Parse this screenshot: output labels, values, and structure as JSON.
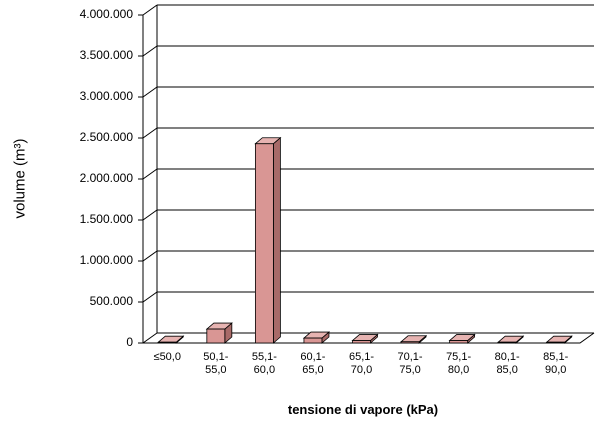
{
  "chart_data": {
    "type": "bar3d",
    "x_label": "tensione di vapore (kPa)",
    "y_label": "volume (m³)",
    "categories": [
      "≤50,0",
      "50,1-55,0",
      "55,1-60,0",
      "60,1-65,0",
      "65,1-70,0",
      "70,1-75,0",
      "75,1-80,0",
      "80,1-85,0",
      "85,1-90,0"
    ],
    "values": [
      10000,
      170000,
      2430000,
      60000,
      30000,
      15000,
      30000,
      10000,
      10000
    ],
    "color": "#d99694",
    "ylim": [
      0,
      4000000
    ],
    "yticks": [
      0,
      {
        "value": 500000,
        "label": "500.000"
      },
      {
        "value": 1000000,
        "label": "1.000.000"
      },
      {
        "value": 1500000,
        "label": "1.500.000"
      },
      {
        "value": 2000000,
        "label": "2.000.000"
      },
      {
        "value": 2500000,
        "label": "2.500.000"
      },
      {
        "value": 3000000,
        "label": "3.000.000"
      },
      {
        "value": 3500000,
        "label": "3.500.000"
      },
      {
        "value": 4000000,
        "label": "4.000.000"
      }
    ],
    "grid": true
  }
}
